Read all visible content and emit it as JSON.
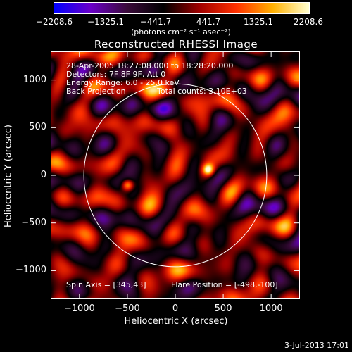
{
  "colorbar": {
    "ticks": [
      "−2208.6",
      "−1325.1",
      "−441.7",
      "441.7",
      "1325.1",
      "2208.6"
    ],
    "tick_values": [
      -2208.6,
      -1325.1,
      -441.7,
      441.7,
      1325.1,
      2208.6
    ],
    "units": "(photons cm⁻² s⁻¹ asec⁻²)",
    "colors": [
      "#0000ff",
      "#6a00c8",
      "#3a0a3a",
      "#000000",
      "#a00000",
      "#ff3000",
      "#ffb000",
      "#ffffd0"
    ]
  },
  "title": "Reconstructed RHESSI Image",
  "info": {
    "line1": "28-Apr-2005 18:27:08.000 to 18:28:20.000",
    "line2": "Detectors: 7F 8F 9F, Att 0",
    "line3": "Energy Range: 6.0 - 25.0 keV",
    "line4_a": "Back Projection",
    "line4_b": "Total counts: 3.10E+03",
    "spin_axis": "Spin Axis = [345,43]",
    "flare_position": "Flare Position = [-498,-100]"
  },
  "footer": {
    "timestamp": "3-Jul-2013 17:01"
  },
  "chart_data": {
    "type": "heatmap",
    "title": "Reconstructed RHESSI Image",
    "xlabel": "Heliocentric X (arcsec)",
    "ylabel": "Heliocentric Y (arcsec)",
    "xlim": [
      -1300,
      1300
    ],
    "ylim": [
      -1300,
      1300
    ],
    "x_ticks": [
      "−1000",
      "−500",
      "0",
      "500",
      "1000"
    ],
    "x_tick_values": [
      -1000,
      -500,
      0,
      500,
      1000
    ],
    "y_ticks": [
      "1000",
      "500",
      "0",
      "−500",
      "−1000"
    ],
    "y_tick_values": [
      1000,
      500,
      0,
      -500,
      -1000
    ],
    "color_range": [
      -2208.6,
      2208.6
    ],
    "solar_limb_radius_arcsec": 954,
    "sources": [
      {
        "x": -500,
        "y": -100,
        "peak": 2208.6
      },
      {
        "x": 340,
        "y": 60,
        "peak": 2050
      }
    ]
  }
}
